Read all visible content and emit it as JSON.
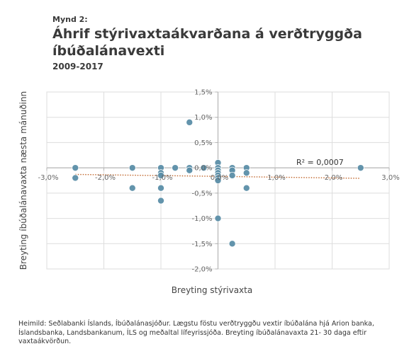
{
  "header": {
    "label": "Mynd 2:",
    "title": "Áhrif stýrivaxtaákvarðana á verðtryggða íbúðalánavexti",
    "subtitle": "2009-2017"
  },
  "footer": {
    "source": "Heimild: Seðlabanki Íslands, Íbúðalánasjóður. Lægstu föstu verðtryggðu vextir íbúðalána hjá Arion banka, Íslandsbanka, Landsbankanum, ÍLS og meðaltal lífeyrissjóða. Breyting íbúðalánavaxta 21- 30 daga eftir vaxtaákvörðun."
  },
  "chart_data": {
    "type": "scatter",
    "xlabel": "Breyting stýrivaxta",
    "ylabel": "Breyting íbúðalánavaxta næsta mánuðinn",
    "xlim": [
      -3.0,
      3.0
    ],
    "ylim": [
      -2.0,
      1.5
    ],
    "x_ticks": [
      "-3,0%",
      "-2,0%",
      "-1,0%",
      "0,0%",
      "1,0%",
      "2,0%",
      "3,0%"
    ],
    "y_ticks": [
      "1,5%",
      "1,0%",
      "0,5%",
      "0,0%",
      "-0,5%",
      "-1,0%",
      "-1,5%",
      "-2,0%"
    ],
    "grid": true,
    "trendline": {
      "style": "dotted",
      "color": "#c0652a",
      "annotation": "R² = 0,0007"
    },
    "colors": {
      "point": "#5b8ea8",
      "axis": "#b5b5b5",
      "grid": "#dddddd",
      "trend": "#c0652a"
    },
    "series": [
      {
        "points": [
          [
            -2.5,
            0.0
          ],
          [
            -2.5,
            -0.2
          ],
          [
            -1.5,
            0.0
          ],
          [
            -1.5,
            -0.4
          ],
          [
            -1.0,
            0.0
          ],
          [
            -1.0,
            -0.1
          ],
          [
            -1.0,
            -0.15
          ],
          [
            -1.0,
            -0.4
          ],
          [
            -1.0,
            -0.65
          ],
          [
            -0.75,
            0.0
          ],
          [
            -0.5,
            0.9
          ],
          [
            -0.5,
            0.0
          ],
          [
            -0.5,
            -0.05
          ],
          [
            -0.25,
            0.0
          ],
          [
            0.0,
            0.1
          ],
          [
            0.0,
            0.0
          ],
          [
            0.0,
            -0.05
          ],
          [
            0.0,
            -0.1
          ],
          [
            0.0,
            -0.15
          ],
          [
            0.0,
            -0.2
          ],
          [
            0.0,
            -0.25
          ],
          [
            0.0,
            -1.0
          ],
          [
            0.25,
            0.0
          ],
          [
            0.25,
            -0.05
          ],
          [
            0.25,
            -0.15
          ],
          [
            0.25,
            -1.5
          ],
          [
            0.5,
            0.0
          ],
          [
            0.5,
            -0.1
          ],
          [
            0.5,
            -0.4
          ],
          [
            2.5,
            0.0
          ]
        ]
      }
    ]
  }
}
